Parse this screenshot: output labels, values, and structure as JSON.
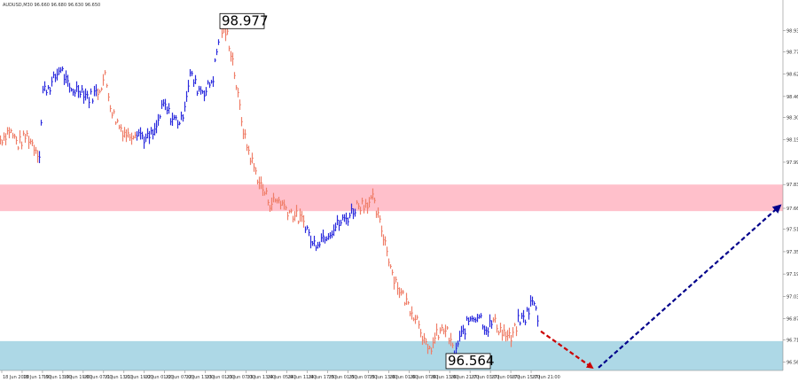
{
  "header": {
    "text": "AUDUSD,M30 96.660 96.680 96.630 96.650"
  },
  "chart_data": {
    "type": "bar",
    "ylim": [
      96.5,
      99.15
    ],
    "yticks": [
      98.93,
      98.78,
      98.62,
      98.46,
      98.31,
      98.15,
      97.99,
      97.83,
      97.66,
      97.51,
      97.35,
      97.19,
      97.03,
      96.87,
      96.72,
      96.56
    ],
    "ytick_labels": [
      "98.930",
      "98.775",
      "98.620",
      "98.460",
      "98.305",
      "98.150",
      "97.990",
      "97.830",
      "97.665",
      "97.510",
      "97.350",
      "97.190",
      "97.030",
      "96.870",
      "96.715",
      "96.560"
    ],
    "xtick_labels": [
      "18 Jun 2020",
      "18 Jun 17:00",
      "19 Jun 13:00",
      "19 Jun 19:00",
      "20 Jun 07:00",
      "21 Jun 13:00",
      "21 Jun 19:00",
      "22 Jun 01:00",
      "22 Jun 07:00",
      "22 Jun 13:00",
      "23 Jun 01:00",
      "23 Jun 07:00",
      "23 Jun 13:00",
      "24 Jun 05:00",
      "24 Jun 11:00",
      "24 Jun 17:00",
      "25 Jun 01:00",
      "25 Jun 07:00",
      "25 Jun 13:00",
      "26 Jun 01:00",
      "26 Jun 07:00",
      "26 Jun 13:00",
      "26 Jun 21:00",
      "27 Jun 03:00",
      "27 Jun 09:00",
      "27 Jun 15:00",
      "27 Jun 21:00"
    ],
    "path": [
      [
        0,
        98.15
      ],
      [
        10,
        98.22
      ],
      [
        20,
        98.12
      ],
      [
        30,
        98.18
      ],
      [
        44,
        98.05
      ],
      [
        48,
        98.5
      ],
      [
        58,
        98.55
      ],
      [
        68,
        98.67
      ],
      [
        78,
        98.5
      ],
      [
        90,
        98.52
      ],
      [
        100,
        98.45
      ],
      [
        110,
        98.5
      ],
      [
        118,
        98.6
      ],
      [
        126,
        98.35
      ],
      [
        134,
        98.25
      ],
      [
        144,
        98.18
      ],
      [
        154,
        98.22
      ],
      [
        164,
        98.15
      ],
      [
        174,
        98.2
      ],
      [
        184,
        98.4
      ],
      [
        194,
        98.3
      ],
      [
        204,
        98.28
      ],
      [
        214,
        98.62
      ],
      [
        222,
        98.52
      ],
      [
        232,
        98.5
      ],
      [
        240,
        98.6
      ],
      [
        248,
        98.95
      ],
      [
        256,
        98.9
      ],
      [
        262,
        98.72
      ],
      [
        268,
        98.45
      ],
      [
        276,
        98.15
      ],
      [
        286,
        97.95
      ],
      [
        294,
        97.82
      ],
      [
        304,
        97.7
      ],
      [
        314,
        97.72
      ],
      [
        324,
        97.65
      ],
      [
        334,
        97.6
      ],
      [
        344,
        97.55
      ],
      [
        352,
        97.4
      ],
      [
        362,
        97.45
      ],
      [
        372,
        97.5
      ],
      [
        382,
        97.55
      ],
      [
        392,
        97.6
      ],
      [
        402,
        97.68
      ],
      [
        412,
        97.7
      ],
      [
        420,
        97.72
      ],
      [
        428,
        97.55
      ],
      [
        434,
        97.42
      ],
      [
        442,
        97.2
      ],
      [
        452,
        97.05
      ],
      [
        462,
        96.95
      ],
      [
        472,
        96.85
      ],
      [
        482,
        96.62
      ],
      [
        492,
        96.75
      ],
      [
        502,
        96.8
      ],
      [
        512,
        96.62
      ],
      [
        520,
        96.75
      ],
      [
        530,
        96.88
      ],
      [
        540,
        96.9
      ],
      [
        548,
        96.8
      ],
      [
        556,
        96.85
      ],
      [
        566,
        96.78
      ],
      [
        576,
        96.72
      ],
      [
        584,
        96.85
      ],
      [
        592,
        96.88
      ],
      [
        600,
        97.0
      ],
      [
        608,
        96.85
      ]
    ],
    "dir": [
      "d",
      "d",
      "d",
      "d",
      "u",
      "u",
      "u",
      "u",
      "u",
      "u",
      "u",
      "d",
      "d",
      "d",
      "d",
      "d",
      "u",
      "u",
      "u",
      "u",
      "u",
      "u",
      "u",
      "u",
      "u",
      "u",
      "d",
      "d",
      "d",
      "d",
      "d",
      "d",
      "d",
      "d",
      "d",
      "d",
      "d",
      "u",
      "u",
      "u",
      "u",
      "u",
      "u",
      "d",
      "d",
      "d",
      "d",
      "d",
      "d",
      "d",
      "d",
      "d",
      "d",
      "d",
      "d",
      "u",
      "u",
      "u",
      "u",
      "u",
      "d",
      "d",
      "d",
      "u",
      "u",
      "u"
    ],
    "bands": [
      {
        "y0": 97.64,
        "y1": 97.83,
        "color": "#ffc0cb"
      },
      {
        "y0": 96.5,
        "y1": 96.71,
        "color": "#add8e6"
      }
    ],
    "annotations": [
      {
        "text": "98.977",
        "x": 252,
        "y": 98.977
      },
      {
        "text": "96.564",
        "x": 507,
        "y": 96.564
      }
    ],
    "arrows": [
      {
        "x0": 610,
        "y0": 96.78,
        "x1": 668,
        "y1": 96.52,
        "color": "#cc0000"
      },
      {
        "x0": 675,
        "y0": 96.52,
        "x1": 880,
        "y1": 97.68,
        "color": "#00008b"
      }
    ],
    "up_color": "#2a2add",
    "down_color": "#ef7e68"
  }
}
